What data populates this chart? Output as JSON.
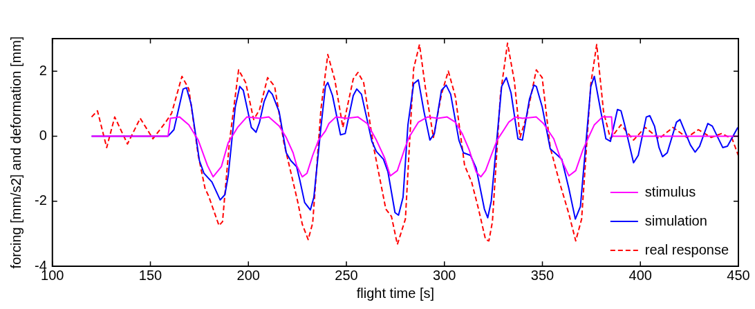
{
  "chart_data": {
    "type": "line",
    "xlabel": "flight time [s]",
    "ylabel": "forcing [mm/s2] and deformation [mm]",
    "xlim": [
      100,
      450
    ],
    "xticks": [
      100,
      150,
      200,
      250,
      300,
      350,
      400,
      450
    ],
    "ylim": [
      -4,
      3
    ],
    "yticks": [
      -4,
      -2,
      0,
      2
    ],
    "grid": false,
    "legend": "bottom right",
    "marker": "none",
    "series": [
      {
        "name": "stimulus",
        "color": "#ff00ff",
        "line_style": "solid",
        "x": [
          120,
          159.0,
          160.2,
          164.9,
          169.6,
          174.4,
          179.1,
          182.0,
          186.2,
          189.7,
          194.5,
          199.2,
          205.7,
          210.4,
          215.7,
          219.3,
          222.8,
          224.6,
          227.5,
          229.9,
          232.8,
          235.8,
          239.3,
          241.1,
          244.6,
          250,
          255.9,
          260.6,
          265.3,
          269.5,
          272.4,
          276,
          279.5,
          281.9,
          286.7,
          291.4,
          296.7,
          301.4,
          305.6,
          309.1,
          312.7,
          316.2,
          318.6,
          321,
          323.9,
          326.9,
          330.4,
          332.8,
          336.3,
          339.8,
          346.9,
          350.5,
          355.8,
          358.7,
          363.5,
          367,
          370.6,
          373.5,
          376.5,
          380.6,
          385.3,
          385.9,
          450
        ],
        "values": [
          0,
          0,
          0.55,
          0.59,
          0.35,
          -0.12,
          -0.9,
          -1.25,
          -0.94,
          -0.2,
          0.27,
          0.59,
          0.55,
          0.59,
          0.31,
          -0.04,
          -0.51,
          -0.9,
          -1.25,
          -1.14,
          -0.59,
          -0.12,
          0.16,
          0.39,
          0.59,
          0.55,
          0.59,
          0.39,
          -0.12,
          -0.67,
          -1.22,
          -1.06,
          -0.43,
          -0.04,
          0.43,
          0.59,
          0.55,
          0.59,
          0.43,
          0.08,
          -0.43,
          -1.1,
          -1.25,
          -1.06,
          -0.59,
          -0.12,
          0.2,
          0.43,
          0.59,
          0.55,
          0.59,
          0.39,
          -0.08,
          -0.59,
          -1.22,
          -1.06,
          -0.43,
          -0.04,
          0.35,
          0.59,
          0.59,
          0,
          0
        ]
      },
      {
        "name": "simulation",
        "color": "#0000ff",
        "line_style": "solid",
        "x": [
          120,
          159.0,
          162,
          166.7,
          168.4,
          170.8,
          175,
          177.3,
          181.4,
          185.6,
          188,
          189.7,
          193.3,
          195.6,
          197.4,
          201.5,
          203.9,
          205.7,
          208.0,
          210.4,
          212.2,
          215.7,
          219.3,
          221.6,
          224.6,
          226.3,
          228.7,
          231.6,
          233.4,
          237,
          239.3,
          240.5,
          242.9,
          247,
          249.4,
          253.5,
          255.3,
          257.7,
          263,
          265.3,
          268.9,
          271.2,
          274.8,
          276.6,
          278.9,
          281.4,
          284.3,
          286.7,
          289.6,
          292.6,
          294.9,
          298.5,
          300.9,
          303.2,
          307.4,
          309.7,
          313.3,
          316.2,
          320.4,
          322.1,
          323.9,
          329.2,
          331.6,
          334,
          337.5,
          339.8,
          343.4,
          345.7,
          346.9,
          349.9,
          354,
          357,
          359.9,
          363.5,
          366.8,
          369.4,
          374.7,
          376.5,
          382.4,
          384.7,
          388.3,
          390.1,
          391.8,
          396.5,
          398.9,
          403,
          404.8,
          407.2,
          409.5,
          411.3,
          413.7,
          418.4,
          420.2,
          425.5,
          427.9,
          430.2,
          434.4,
          436.7,
          442.0,
          444.4,
          449.7
        ],
        "values": [
          0,
          0,
          0.2,
          1.45,
          1.49,
          0.98,
          -0.75,
          -1.14,
          -1.41,
          -1.96,
          -1.8,
          -1.22,
          0.9,
          1.53,
          1.41,
          0.27,
          0.12,
          0.43,
          1.06,
          1.41,
          1.29,
          0.75,
          -0.51,
          -0.75,
          -0.94,
          -1.37,
          -2.04,
          -2.27,
          -1.88,
          0.27,
          1.53,
          1.65,
          1.25,
          0.04,
          0.08,
          1.25,
          1.45,
          1.29,
          -0.16,
          -0.47,
          -0.71,
          -1.1,
          -2.35,
          -2.43,
          -1.88,
          0.35,
          1.61,
          1.73,
          0.75,
          -0.12,
          0.08,
          1.41,
          1.57,
          1.29,
          -0.12,
          -0.51,
          -0.59,
          -0.98,
          -2.24,
          -2.51,
          -2.0,
          1.53,
          1.8,
          1.33,
          -0.08,
          -0.12,
          1.14,
          1.57,
          1.53,
          0.9,
          -0.39,
          -0.55,
          -0.71,
          -1.61,
          -2.55,
          -2.16,
          1.53,
          1.84,
          -0.08,
          -0.16,
          0.82,
          0.78,
          0.39,
          -0.82,
          -0.59,
          0.59,
          0.63,
          0.31,
          -0.35,
          -0.63,
          -0.51,
          0.43,
          0.51,
          -0.27,
          -0.49,
          -0.31,
          0.39,
          0.31,
          -0.35,
          -0.31,
          0.27
        ]
      },
      {
        "name": "real response",
        "color": "#ff0000",
        "line_style": "dashed",
        "x": [
          120,
          123,
          127.7,
          131.8,
          138.3,
          144.8,
          151.3,
          157.8,
          160.8,
          166.1,
          169.6,
          174.4,
          177.9,
          179.7,
          185,
          186.8,
          190.3,
          195,
          198.6,
          202.7,
          205.7,
          209.8,
          213.4,
          218.1,
          222,
          225.1,
          227.5,
          230.5,
          232.8,
          237,
          240.5,
          244.1,
          248.2,
          253.5,
          255.9,
          258.8,
          264.2,
          270.1,
          273,
          276,
          280.1,
          284.3,
          287.3,
          290.2,
          294.4,
          298.5,
          302.0,
          305.6,
          310.3,
          313.9,
          317.4,
          321,
          322.7,
          324.5,
          328.6,
          332.2,
          335.7,
          338.6,
          342.2,
          346.9,
          349.9,
          354,
          358.7,
          363.5,
          367,
          370,
          374.7,
          377.7,
          381.2,
          384.7,
          390.1,
          396.5,
          402.4,
          409.5,
          416.6,
          423.7,
          429.6,
          436.1,
          441.4,
          446.8,
          450
        ],
        "values": [
          0.59,
          0.78,
          -0.35,
          0.59,
          -0.24,
          0.55,
          -0.08,
          0.43,
          0.7,
          1.84,
          1.45,
          -0.59,
          -1.61,
          -1.84,
          -2.75,
          -2.63,
          -0.2,
          2.04,
          1.65,
          0.51,
          0.82,
          1.8,
          1.53,
          -0.2,
          -1.2,
          -2.0,
          -2.71,
          -3.18,
          -2.67,
          0.82,
          2.51,
          1.73,
          0.27,
          1.76,
          1.96,
          1.65,
          -0.43,
          -2.24,
          -2.47,
          -3.33,
          -2.55,
          2.08,
          2.82,
          1.53,
          -0.04,
          1.29,
          2.0,
          1.22,
          -0.9,
          -1.41,
          -2.24,
          -3.18,
          -3.22,
          -2.63,
          1.29,
          2.86,
          1.69,
          -0.04,
          0.67,
          2.04,
          1.8,
          -0.35,
          -1.41,
          -2.39,
          -3.22,
          -2.55,
          1.61,
          2.82,
          0.75,
          -0.08,
          0.35,
          -0.12,
          0.27,
          -0.08,
          0.27,
          -0.04,
          0.2,
          -0.04,
          0.08,
          -0.08,
          -0.6
        ]
      }
    ]
  }
}
